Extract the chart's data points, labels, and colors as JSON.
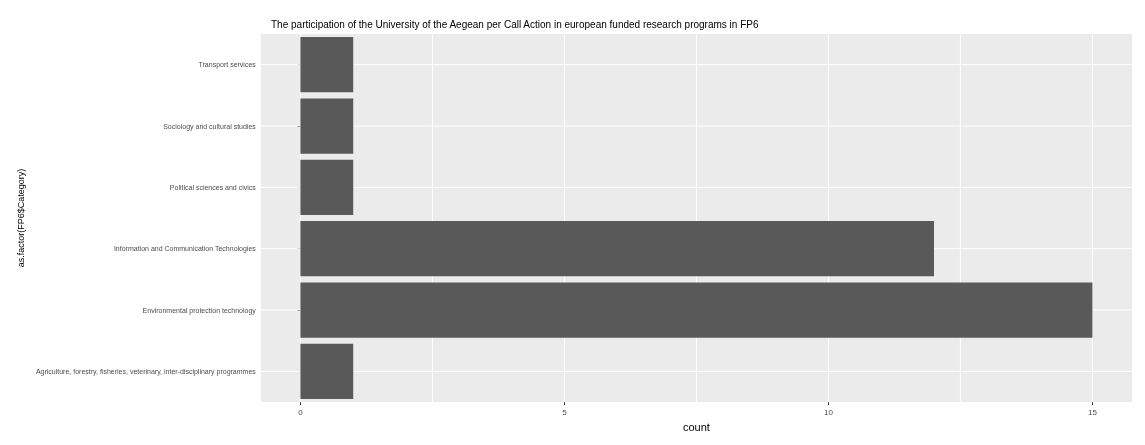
{
  "chart_data": {
    "type": "bar",
    "orientation": "horizontal",
    "title": "The participation of the University of the Aegean per Call Action in european funded research programs in FP6",
    "xlabel": "count",
    "ylabel": "as.factor(FP6$Category)",
    "categories": [
      "Transport services",
      "Sociology and cultural studies",
      "Political sciences and civics",
      "Information and Communication Technologies",
      "Environmental protection technology",
      "Agriculture, forestry, fisheries, veterinary, inter-disciplinary programmes"
    ],
    "values": [
      1,
      1,
      1,
      12,
      15,
      1
    ],
    "color": "#595959",
    "xlim": [
      -0.75,
      15.75
    ],
    "xticks": [
      0,
      {
        "value": 2.5,
        "label": null
      },
      5,
      {
        "value": 7.5,
        "label": null
      },
      10,
      {
        "value": 12.5,
        "label": null
      },
      15
    ],
    "grid": true
  }
}
